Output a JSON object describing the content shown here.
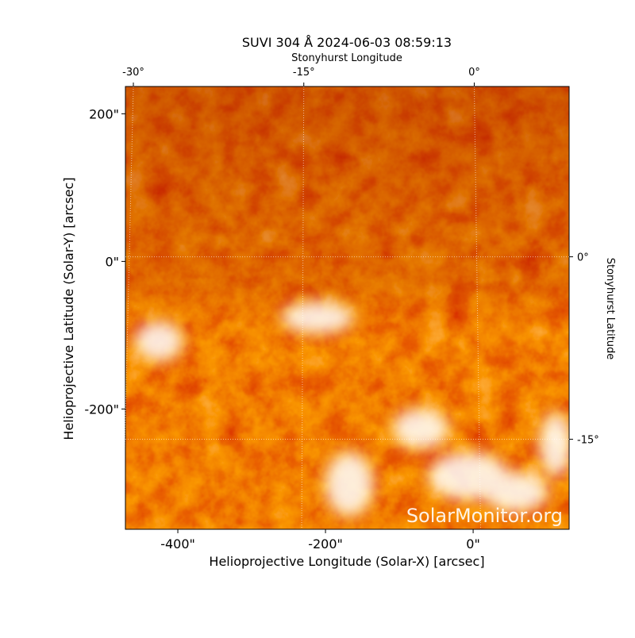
{
  "chart_data": {
    "type": "image",
    "title": "SUVI 304 Å 2024-06-03 08:59:13",
    "x_label": "Helioprojective Longitude (Solar-X) [arcsec]",
    "y_label": "Helioprojective Latitude (Solar-Y) [arcsec]",
    "x2_label": "Stonyhurst Longitude",
    "y2_label": "Stonyhurst Latitude",
    "watermark": "SolarMonitor.org",
    "xlim": [
      -471,
      130
    ],
    "ylim": [
      -363,
      237
    ],
    "xticks": [
      {
        "value": -400,
        "label": "-400\""
      },
      {
        "value": -200,
        "label": "-200\""
      },
      {
        "value": 0,
        "label": "0\""
      }
    ],
    "yticks": [
      {
        "value": -200,
        "label": "-200\""
      },
      {
        "value": 0,
        "label": "0\""
      },
      {
        "value": 200,
        "label": "200\""
      }
    ],
    "x2lim": [
      -30.7,
      8.35
    ],
    "x2ticks": [
      {
        "value": -30,
        "label": "-30°"
      },
      {
        "value": -15,
        "label": "-15°"
      },
      {
        "value": 0,
        "label": "0°"
      }
    ],
    "y2lim": [
      -22.4,
      14.0
    ],
    "y2ticks": [
      {
        "value": -15,
        "label": "-15°"
      },
      {
        "value": 0,
        "label": "0°"
      }
    ],
    "grid": true
  }
}
